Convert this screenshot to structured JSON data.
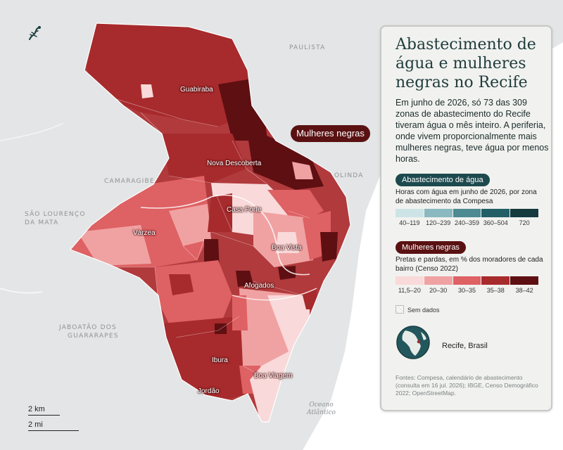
{
  "map": {
    "place_labels": [
      "PAULISTA",
      "CAMARAGIBE",
      "SÃO LOURENÇO",
      "DA MATA",
      "OLINDA",
      "JABOATÃO DOS",
      "GUARARAPES"
    ],
    "neighborhoods": [
      "Guabiraba",
      "Nova Descoberta",
      "Casa Forte",
      "Várzea",
      "Boa Vista",
      "Afogados",
      "Ibura",
      "Jordão",
      "Boa Viagem"
    ],
    "ocean": [
      "Oceano",
      "Atlântico"
    ],
    "toggle_label": "Mulheres negras",
    "scale": {
      "km": "2 km",
      "mi": "2 mi"
    },
    "logo_icon": "lizard-icon"
  },
  "panel": {
    "title": "Abastecimento de água e mulheres negras no Recife",
    "intro": "Em junho de 2026, só 73 das 309 zonas de abastecimento do Recife tiveram água o mês inteiro. A periferia, onde vivem proporcionalmente mais mulheres negras, teve água por menos horas.",
    "water": {
      "pill": "Abastecimento de água",
      "description": "Horas com água em junho de 2026, por zona de abastecimento da Compesa",
      "classes": [
        "40–119",
        "120–239",
        "240–359",
        "360–504",
        "720"
      ],
      "colors": [
        "#cde4e6",
        "#8ab9bf",
        "#4e8a92",
        "#235f66",
        "#153b3f"
      ]
    },
    "women": {
      "pill": "Mulheres negras",
      "description": "Pretas e pardas, em % dos moradores de cada bairro (Censo 2022)",
      "classes": [
        "11,5–20",
        "20–30",
        "30–35",
        "35–38",
        "38–42"
      ],
      "colors": [
        "#f9d9d9",
        "#f0a2a2",
        "#de6164",
        "#a72a2c",
        "#5e0f12"
      ]
    },
    "no_data": "Sem dados",
    "locator_label": "Recife, Brasil",
    "sources": "Fontes: Compesa, calendário de abastecimento (consulta em 16 jul. 2026); IBGE, Censo Demográfico 2022; OpenStreetMap."
  }
}
